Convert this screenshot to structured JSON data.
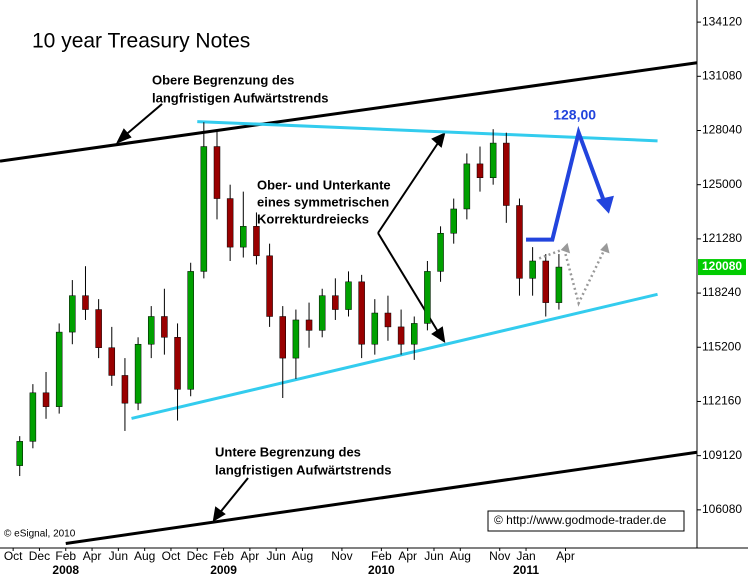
{
  "chart_data": {
    "type": "candlestick",
    "title": "10 year Treasury Notes",
    "x": [
      "2007-10",
      "2007-11",
      "2007-12",
      "2008-01",
      "2008-02",
      "2008-03",
      "2008-04",
      "2008-05",
      "2008-06",
      "2008-07",
      "2008-08",
      "2008-09",
      "2008-10",
      "2008-11",
      "2008-12",
      "2009-01",
      "2009-02",
      "2009-03",
      "2009-04",
      "2009-05",
      "2009-06",
      "2009-07",
      "2009-08",
      "2009-09",
      "2009-10",
      "2009-11",
      "2009-12",
      "2010-01",
      "2010-02",
      "2010-03",
      "2010-04",
      "2010-05",
      "2010-06",
      "2010-07",
      "2010-08",
      "2010-09",
      "2010-10",
      "2010-11",
      "2010-12",
      "2011-01",
      "2011-02",
      "2011-03"
    ],
    "open": [
      108.8,
      110.2,
      113.0,
      112.2,
      116.5,
      118.6,
      117.8,
      115.6,
      114.0,
      112.4,
      115.8,
      117.4,
      116.2,
      113.2,
      120.0,
      127.2,
      124.2,
      121.4,
      122.6,
      120.9,
      117.4,
      115.0,
      117.2,
      116.6,
      118.6,
      117.8,
      119.4,
      115.8,
      117.6,
      116.8,
      115.8,
      117.0,
      120.0,
      122.2,
      123.6,
      126.2,
      125.4,
      127.4,
      123.8,
      119.6,
      120.6,
      118.2
    ],
    "high": [
      110.5,
      113.5,
      114.2,
      117.0,
      119.5,
      120.3,
      118.4,
      116.8,
      115.0,
      116.2,
      118.0,
      119.0,
      117.0,
      120.5,
      128.6,
      128.2,
      125.0,
      124.6,
      123.4,
      121.6,
      118.0,
      117.8,
      118.2,
      119.0,
      119.6,
      120.0,
      119.8,
      118.4,
      118.6,
      117.8,
      117.4,
      120.6,
      122.6,
      124.2,
      126.8,
      127.2,
      128.2,
      128.0,
      124.2,
      121.4,
      121.0,
      121.0
    ],
    "low": [
      108.2,
      109.8,
      111.5,
      111.8,
      115.8,
      117.2,
      115.0,
      113.4,
      110.8,
      112.0,
      115.0,
      115.2,
      111.4,
      112.8,
      119.6,
      123.0,
      120.6,
      120.8,
      120.4,
      116.8,
      112.7,
      113.8,
      115.6,
      116.2,
      117.2,
      117.4,
      115.0,
      115.2,
      116.0,
      115.2,
      114.9,
      116.6,
      119.4,
      121.6,
      123.0,
      124.6,
      125.0,
      122.8,
      118.6,
      118.6,
      117.4,
      117.8
    ],
    "close": [
      110.2,
      113.0,
      112.2,
      116.5,
      118.6,
      117.8,
      115.6,
      114.0,
      112.4,
      115.8,
      117.4,
      116.2,
      113.2,
      120.0,
      127.2,
      124.2,
      121.4,
      122.6,
      120.9,
      117.4,
      115.0,
      117.2,
      116.6,
      118.6,
      117.8,
      119.4,
      115.8,
      117.6,
      116.8,
      115.8,
      117.0,
      120.0,
      122.2,
      123.6,
      126.2,
      125.4,
      127.4,
      123.8,
      119.6,
      120.6,
      118.2,
      120.25
    ],
    "up_color": "#00a000",
    "down_color": "#990000",
    "xlim": [
      "2007-09",
      "2012-02"
    ],
    "ylim": [
      104.05,
      135.65
    ],
    "yticks": [
      {
        "value": 134.375,
        "label": "134120"
      },
      {
        "value": 131.25,
        "label": "131080"
      },
      {
        "value": 128.125,
        "label": "128040"
      },
      {
        "value": 125.0,
        "label": "125000"
      },
      {
        "value": 121.875,
        "label": "121280"
      },
      {
        "value": 118.75,
        "label": "118240"
      },
      {
        "value": 115.625,
        "label": "115200"
      },
      {
        "value": 112.5,
        "label": "112160"
      },
      {
        "value": 109.375,
        "label": "109120"
      },
      {
        "value": 106.25,
        "label": "106080"
      }
    ],
    "xticks": [
      {
        "value": "2007-10",
        "label": "Oct"
      },
      {
        "value": "2007-12",
        "label": "Dec"
      },
      {
        "value": "2008-02",
        "label": "Feb"
      },
      {
        "value": "2008-04",
        "label": "Apr"
      },
      {
        "value": "2008-06",
        "label": "Jun"
      },
      {
        "value": "2008-08",
        "label": "Aug"
      },
      {
        "value": "2008-10",
        "label": "Oct"
      },
      {
        "value": "2008-12",
        "label": "Dec"
      },
      {
        "value": "2009-02",
        "label": "Feb"
      },
      {
        "value": "2009-04",
        "label": "Apr"
      },
      {
        "value": "2009-06",
        "label": "Jun"
      },
      {
        "value": "2009-08",
        "label": "Aug"
      },
      {
        "value": "2009-11",
        "label": "Nov"
      },
      {
        "value": "2010-02",
        "label": "Feb"
      },
      {
        "value": "2010-04",
        "label": "Apr"
      },
      {
        "value": "2010-06",
        "label": "Jun"
      },
      {
        "value": "2010-08",
        "label": "Aug"
      },
      {
        "value": "2010-11",
        "label": "Nov"
      },
      {
        "value": "2011-01",
        "label": "Jan"
      },
      {
        "value": "2011-04",
        "label": "Apr"
      }
    ],
    "year_ticks": [
      {
        "value": "2008-02",
        "label": "2008"
      },
      {
        "value": "2009-02",
        "label": "2009"
      },
      {
        "value": "2010-02",
        "label": "2010"
      },
      {
        "value": "2011-01",
        "label": "2011"
      }
    ],
    "last_price": {
      "value": 120.25,
      "label": "120080",
      "color": "#00cc00"
    },
    "trend_lines": [
      {
        "x": [
          "2007-09",
          "2012-02"
        ],
        "y": [
          126.36,
          132.03
        ],
        "color": "#000000"
      },
      {
        "x": [
          "2008-02",
          "2012-02"
        ],
        "y": [
          104.31,
          109.57
        ],
        "color": "#000000"
      },
      {
        "x": [
          "2008-12",
          "2011-11"
        ],
        "y": [
          128.64,
          127.53
        ],
        "color": "#33ccee"
      },
      {
        "x": [
          "2008-07",
          "2011-11"
        ],
        "y": [
          111.52,
          118.68
        ],
        "color": "#33ccee"
      }
    ],
    "forecast": {
      "x": [
        "2011-01",
        "2011-03",
        "2011-05",
        "2011-07"
      ],
      "y": [
        121.83,
        121.83,
        128.0,
        123.9
      ],
      "color": "#2244dd",
      "label": "128,00"
    },
    "alt_paths": [
      {
        "x": [
          "2011-02",
          "2011-04"
        ],
        "y": [
          120.75,
          121.32
        ],
        "color": "#999999"
      },
      {
        "x": [
          "2011-04",
          "2011-05",
          "2011-07"
        ],
        "y": [
          121.0,
          118.17,
          121.32
        ],
        "color": "#999999"
      }
    ],
    "annotations": {
      "upper": [
        "Obere Begrenzung des",
        "langfristigen Aufwärtstrends"
      ],
      "middle": [
        "Ober- und Unterkante",
        "eines symmetrischen",
        "Korrekturdreiecks"
      ],
      "lower": [
        "Untere Begrenzung des",
        "langfristigen Aufwärtstrends"
      ],
      "source": "© eSignal, 2010",
      "website": "© http://www.godmode-trader.de"
    }
  }
}
